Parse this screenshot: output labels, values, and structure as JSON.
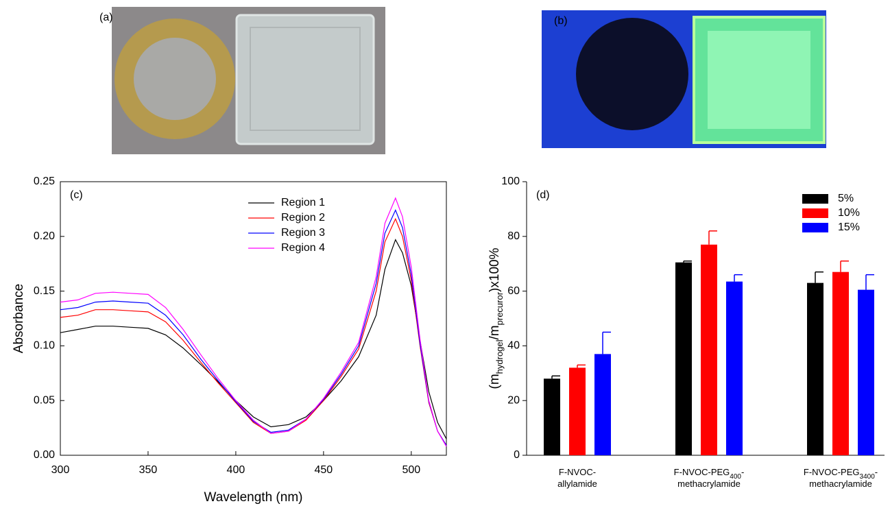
{
  "panels": {
    "a": "(a)",
    "b": "(b)"
  },
  "chart_data": [
    {
      "type": "line",
      "panel": "(c)",
      "xlabel": "Wavelength (nm)",
      "ylabel": "Absorbance",
      "x": [
        300,
        310,
        320,
        330,
        340,
        350,
        360,
        370,
        380,
        390,
        400,
        410,
        420,
        430,
        440,
        450,
        460,
        470,
        480,
        485,
        491,
        495,
        500,
        505,
        510,
        515,
        520
      ],
      "xlim": [
        300,
        520
      ],
      "xticks": [
        300,
        350,
        400,
        450,
        500
      ],
      "ylim": [
        0,
        0.25
      ],
      "yticks": [
        {
          "value": 0,
          "label": "0.00"
        },
        0.05,
        {
          "value": 0.1,
          "label": "0.10"
        },
        0.15,
        {
          "value": 0.2,
          "label": "0.20"
        },
        0.25
      ],
      "legend": "top-center",
      "series": [
        {
          "name": "Region 1",
          "color": "#000000",
          "values": [
            0.112,
            0.115,
            0.118,
            0.118,
            0.117,
            0.116,
            0.11,
            0.098,
            0.083,
            0.067,
            0.05,
            0.035,
            0.026,
            0.028,
            0.035,
            0.05,
            0.068,
            0.09,
            0.128,
            0.17,
            0.197,
            0.185,
            0.155,
            0.105,
            0.058,
            0.03,
            0.015
          ]
        },
        {
          "name": "Region 2",
          "color": "#ff0000",
          "values": [
            0.126,
            0.128,
            0.133,
            0.133,
            0.132,
            0.131,
            0.122,
            0.105,
            0.085,
            0.066,
            0.048,
            0.03,
            0.02,
            0.022,
            0.032,
            0.05,
            0.072,
            0.097,
            0.15,
            0.195,
            0.216,
            0.2,
            0.16,
            0.1,
            0.048,
            0.022,
            0.009
          ]
        },
        {
          "name": "Region 3",
          "color": "#0000ff",
          "values": [
            0.133,
            0.135,
            0.14,
            0.141,
            0.14,
            0.139,
            0.128,
            0.11,
            0.088,
            0.068,
            0.049,
            0.031,
            0.021,
            0.023,
            0.033,
            0.051,
            0.074,
            0.1,
            0.157,
            0.203,
            0.224,
            0.208,
            0.165,
            0.102,
            0.049,
            0.022,
            0.009
          ]
        },
        {
          "name": "Region 4",
          "color": "#ff00ff",
          "values": [
            0.14,
            0.142,
            0.148,
            0.149,
            0.148,
            0.147,
            0.135,
            0.115,
            0.092,
            0.07,
            0.05,
            0.032,
            0.02,
            0.022,
            0.033,
            0.052,
            0.076,
            0.103,
            0.163,
            0.212,
            0.235,
            0.218,
            0.172,
            0.106,
            0.05,
            0.022,
            0.008
          ]
        }
      ]
    },
    {
      "type": "bar",
      "panel": "(d)",
      "ylabel": [
        "(m",
        "hydrogel",
        "/m",
        "precuror",
        ")x100%"
      ],
      "categories": [
        [
          [
            "F-NVOC-"
          ],
          [
            "allylamide"
          ]
        ],
        [
          [
            "F-NVOC-PEG",
            "400",
            "-"
          ],
          [
            "methacrylamide"
          ]
        ],
        [
          [
            "F-NVOC-PEG",
            "3400",
            "-"
          ],
          [
            "methacrylamide"
          ]
        ]
      ],
      "ylim": [
        0,
        100
      ],
      "yticks": [
        0,
        20,
        40,
        60,
        80,
        100
      ],
      "legend": "top-right",
      "series": [
        {
          "name": "5%",
          "color": "#000000",
          "values": [
            28,
            70.5,
            63
          ],
          "errors": [
            1,
            0.5,
            4
          ]
        },
        {
          "name": "10%",
          "color": "#ff0000",
          "values": [
            32,
            77,
            67
          ],
          "errors": [
            1,
            5,
            4
          ]
        },
        {
          "name": "15%",
          "color": "#0000ff",
          "values": [
            37,
            63.5,
            60.5
          ],
          "errors": [
            8,
            2.5,
            5.5
          ]
        }
      ]
    }
  ]
}
